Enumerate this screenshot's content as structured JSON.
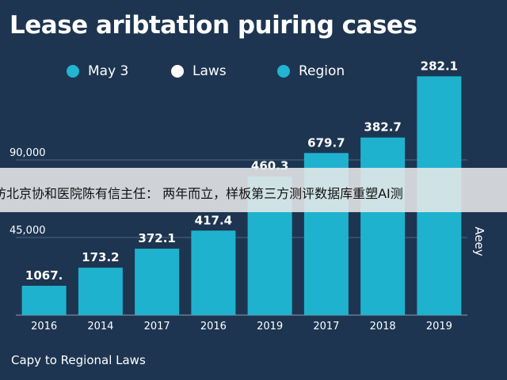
{
  "chart_data": {
    "type": "bar",
    "title": "Lease aribtation puiring cases",
    "legend": [
      "May 3",
      "Laws",
      "Region"
    ],
    "legend_colors": [
      "#22b4d0",
      "#ffffff",
      "#22b4d0"
    ],
    "categories": [
      "2016",
      "2014",
      "2017",
      "2016",
      "2019",
      "2017",
      "2018",
      "2019"
    ],
    "values": [
      17000,
      27500,
      38500,
      49000,
      80500,
      94000,
      103000,
      138500
    ],
    "data_labels": [
      "1067.",
      "173.2",
      "372.1",
      "417.4",
      "460.3",
      "679.7",
      "382.7",
      "282.1"
    ],
    "y_ticks": [
      "45,000",
      "90,000"
    ],
    "ylim": [
      0,
      160000
    ],
    "side_label": "Aeey",
    "grid": true,
    "legend_position": "top",
    "bar_color": "#1fb2cf"
  },
  "footer": "Capy to Regional Laws",
  "overlay_banner": "访北京协和医院陈有信主任： 两年而立，样板第三方测评数据库重塑AI测"
}
